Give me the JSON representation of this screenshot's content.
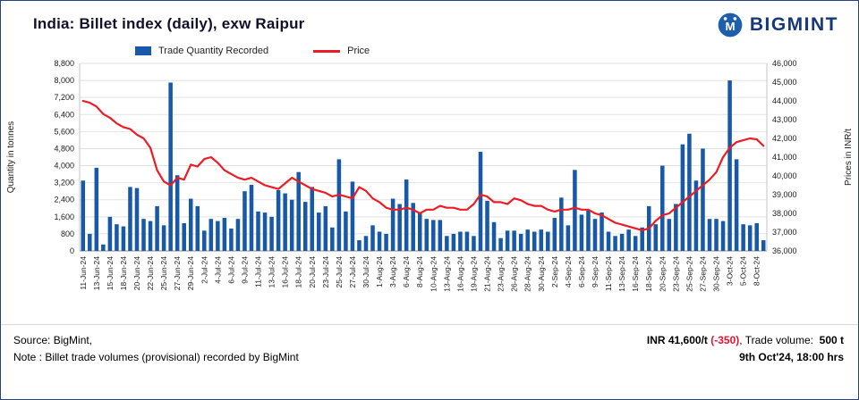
{
  "header": {
    "title": "India: Billet index (daily), exw Raipur",
    "brand": "BIGMINT"
  },
  "legend": [
    {
      "label": "Trade Quantity Recorded",
      "type": "bar",
      "color": "#1759a8"
    },
    {
      "label": "Price",
      "type": "line",
      "color": "#ed1c24"
    }
  ],
  "colors": {
    "bar_blue": "#1759a8",
    "line_red": "#ed1c24",
    "negative": "#e8112d",
    "brand_navy": "#16387c"
  },
  "chart_data": {
    "type": "combo-bar-line",
    "title": "India: Billet index (daily), exw Raipur",
    "x": [
      "11-Jun-24",
      "12-Jun-24",
      "13-Jun-24",
      "14-Jun-24",
      "15-Jun-24",
      "17-Jun-24",
      "18-Jun-24",
      "19-Jun-24",
      "20-Jun-24",
      "21-Jun-24",
      "22-Jun-24",
      "24-Jun-24",
      "25-Jun-24",
      "26-Jun-24",
      "27-Jun-24",
      "28-Jun-24",
      "29-Jun-24",
      "1-Jul-24",
      "2-Jul-24",
      "3-Jul-24",
      "4-Jul-24",
      "5-Jul-24",
      "6-Jul-24",
      "8-Jul-24",
      "9-Jul-24",
      "10-Jul-24",
      "11-Jul-24",
      "12-Jul-24",
      "13-Jul-24",
      "15-Jul-24",
      "16-Jul-24",
      "17-Jul-24",
      "18-Jul-24",
      "19-Jul-24",
      "20-Jul-24",
      "22-Jul-24",
      "23-Jul-24",
      "24-Jul-24",
      "25-Jul-24",
      "26-Jul-24",
      "27-Jul-24",
      "29-Jul-24",
      "30-Jul-24",
      "31-Jul-24",
      "1-Aug-24",
      "2-Aug-24",
      "3-Aug-24",
      "5-Aug-24",
      "6-Aug-24",
      "7-Aug-24",
      "8-Aug-24",
      "9-Aug-24",
      "10-Aug-24",
      "12-Aug-24",
      "13-Aug-24",
      "14-Aug-24",
      "16-Aug-24",
      "17-Aug-24",
      "19-Aug-24",
      "20-Aug-24",
      "21-Aug-24",
      "22-Aug-24",
      "23-Aug-24",
      "24-Aug-24",
      "26-Aug-24",
      "27-Aug-24",
      "28-Aug-24",
      "29-Aug-24",
      "30-Aug-24",
      "31-Aug-24",
      "2-Sep-24",
      "3-Sep-24",
      "4-Sep-24",
      "5-Sep-24",
      "6-Sep-24",
      "7-Sep-24",
      "9-Sep-24",
      "10-Sep-24",
      "11-Sep-24",
      "12-Sep-24",
      "13-Sep-24",
      "14-Sep-24",
      "16-Sep-24",
      "17-Sep-24",
      "18-Sep-24",
      "19-Sep-24",
      "20-Sep-24",
      "21-Sep-24",
      "23-Sep-24",
      "24-Sep-24",
      "25-Sep-24",
      "26-Sep-24",
      "27-Sep-24",
      "28-Sep-24",
      "30-Sep-24",
      "1-Oct-24",
      "3-Oct-24",
      "4-Oct-24",
      "5-Oct-24",
      "7-Oct-24",
      "8-Oct-24",
      "9-Oct-24"
    ],
    "x_label_every": 2,
    "series": [
      {
        "name": "Trade Quantity Recorded",
        "type": "bar",
        "axis": "left",
        "color": "#1759a8",
        "values": [
          3300,
          800,
          3900,
          300,
          1600,
          1250,
          1150,
          3000,
          2950,
          1500,
          1400,
          2100,
          1200,
          7900,
          3550,
          1300,
          2450,
          2100,
          950,
          1500,
          1400,
          1550,
          1050,
          1500,
          2800,
          3100,
          1850,
          1800,
          1600,
          2850,
          2700,
          2400,
          3700,
          2300,
          3000,
          1800,
          2100,
          1100,
          4300,
          1850,
          3250,
          500,
          700,
          1200,
          900,
          800,
          2450,
          2200,
          3350,
          2250,
          1800,
          1500,
          1450,
          1450,
          700,
          800,
          900,
          900,
          700,
          4650,
          2350,
          1350,
          600,
          950,
          950,
          800,
          1000,
          900,
          1000,
          900,
          1550,
          2500,
          1200,
          3800,
          1700,
          1900,
          1500,
          1800,
          900,
          700,
          800,
          1000,
          700,
          1100,
          2100,
          1250,
          4000,
          1500,
          2200,
          5000,
          5500,
          3300,
          4800,
          1500,
          1500,
          1400,
          8000,
          4300,
          1250,
          1200,
          1300,
          500
        ]
      },
      {
        "name": "Price",
        "type": "line",
        "axis": "right",
        "color": "#ed1c24",
        "values": [
          44000,
          43900,
          43700,
          43300,
          43100,
          42800,
          42600,
          42500,
          42200,
          42000,
          41500,
          40300,
          39700,
          39500,
          39900,
          39800,
          40600,
          40500,
          40900,
          41000,
          40700,
          40300,
          40100,
          39900,
          39800,
          39900,
          39700,
          39500,
          39400,
          39300,
          39600,
          39900,
          39700,
          39500,
          39300,
          39200,
          39100,
          38900,
          39000,
          38900,
          38800,
          39400,
          39200,
          38800,
          38600,
          38300,
          38200,
          38200,
          38300,
          38200,
          38000,
          38200,
          38200,
          38400,
          38300,
          38300,
          38200,
          38200,
          38500,
          39000,
          38900,
          38600,
          38600,
          38500,
          38800,
          38700,
          38500,
          38400,
          38400,
          38200,
          38100,
          38200,
          38200,
          38300,
          38200,
          38200,
          38000,
          37900,
          37700,
          37500,
          37400,
          37300,
          37200,
          37100,
          37200,
          37600,
          37900,
          38000,
          38300,
          38600,
          38900,
          39200,
          39500,
          39800,
          40200,
          41000,
          41500,
          41800,
          41900,
          42000,
          41950,
          41600
        ]
      }
    ],
    "left_axis": {
      "title": "Quantity in tonnes",
      "min": 0,
      "max": 8800,
      "step": 800
    },
    "right_axis": {
      "title": "Prices in INR/t",
      "min": 36000,
      "max": 46000,
      "step": 1000
    },
    "grid": true,
    "legend_position": "top"
  },
  "footer": {
    "source": "Source: BigMint,",
    "note": "Note : Billet trade volumes (provisional) recorded by BigMint",
    "price_prefix": "INR ",
    "price_value": "41,600/t",
    "price_change": " (-350)",
    "volume_label": ", Trade volume:  ",
    "volume_value": "500 t",
    "timestamp": "9th Oct'24, 18:00 hrs"
  }
}
